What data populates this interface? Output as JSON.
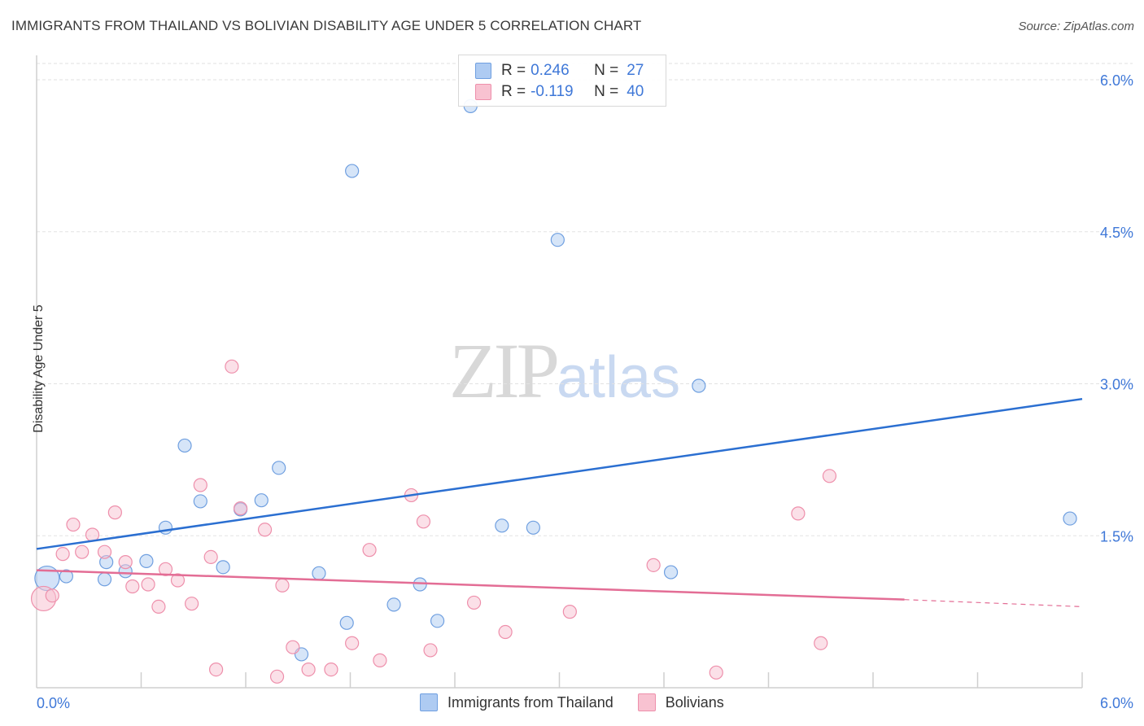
{
  "header": {
    "title": "IMMIGRANTS FROM THAILAND VS BOLIVIAN DISABILITY AGE UNDER 5 CORRELATION CHART",
    "source": "Source: ZipAtlas.com"
  },
  "watermark": {
    "zip": "ZIP",
    "atlas": "atlas"
  },
  "legend_top": {
    "rows": [
      {
        "r_label": "R =",
        "r_value": "0.246",
        "n_label": "N =",
        "n_value": "27"
      },
      {
        "r_label": "R =",
        "r_value": "-0.119",
        "n_label": "N =",
        "n_value": "40"
      }
    ]
  },
  "legend_bottom": {
    "items": [
      {
        "label": "Immigrants from Thailand"
      },
      {
        "label": "Bolivians"
      }
    ]
  },
  "colors": {
    "blue_fill": "#aecbf2",
    "blue_stroke": "#6f9fe0",
    "blue_line": "#2b6fd1",
    "pink_fill": "#f8c2d1",
    "pink_stroke": "#ee8fab",
    "pink_line": "#e36d95",
    "grid": "#e2e2e2",
    "axis_text": "#3f78d8"
  },
  "chart_data": {
    "type": "scatter",
    "title": "IMMIGRANTS FROM THAILAND VS BOLIVIAN DISABILITY AGE UNDER 5 CORRELATION CHART",
    "xlabel": "",
    "ylabel": "Disability Age Under 5",
    "xlim": [
      0,
      6
    ],
    "ylim": [
      0,
      6.3
    ],
    "y_ticks": [
      {
        "value": 1.5,
        "label": "1.5%"
      },
      {
        "value": 3.0,
        "label": "3.0%"
      },
      {
        "value": 4.5,
        "label": "4.5%"
      },
      {
        "value": 6.0,
        "label": "6.0%"
      }
    ],
    "x_ticks": [
      {
        "value": 0,
        "label": "0.0%"
      },
      {
        "value": 6,
        "label": "6.0%"
      }
    ],
    "x_minor_ticks": [
      0.6,
      1.2,
      1.8,
      2.4,
      3.0,
      3.6,
      4.2,
      4.8,
      5.4,
      6.0
    ],
    "grid": true,
    "series": [
      {
        "name": "Immigrants from Thailand",
        "color": "blue",
        "points": [
          {
            "x": 0.06,
            "y": 1.08,
            "big": true
          },
          {
            "x": 0.17,
            "y": 1.1
          },
          {
            "x": 0.4,
            "y": 1.24
          },
          {
            "x": 0.39,
            "y": 1.07
          },
          {
            "x": 0.51,
            "y": 1.15
          },
          {
            "x": 0.63,
            "y": 1.25
          },
          {
            "x": 0.74,
            "y": 1.58
          },
          {
            "x": 0.85,
            "y": 2.39
          },
          {
            "x": 0.94,
            "y": 1.84
          },
          {
            "x": 1.07,
            "y": 1.19
          },
          {
            "x": 1.17,
            "y": 1.76
          },
          {
            "x": 1.29,
            "y": 1.85
          },
          {
            "x": 1.39,
            "y": 2.17
          },
          {
            "x": 1.52,
            "y": 0.33
          },
          {
            "x": 1.62,
            "y": 1.13
          },
          {
            "x": 1.78,
            "y": 0.64
          },
          {
            "x": 1.81,
            "y": 5.1
          },
          {
            "x": 2.05,
            "y": 0.82
          },
          {
            "x": 2.2,
            "y": 1.02
          },
          {
            "x": 2.3,
            "y": 0.66
          },
          {
            "x": 2.49,
            "y": 5.74
          },
          {
            "x": 2.67,
            "y": 1.6
          },
          {
            "x": 2.85,
            "y": 1.58
          },
          {
            "x": 2.99,
            "y": 4.42
          },
          {
            "x": 3.64,
            "y": 1.14
          },
          {
            "x": 3.8,
            "y": 2.98
          },
          {
            "x": 5.93,
            "y": 1.67
          }
        ],
        "trend": {
          "x": [
            0,
            6
          ],
          "y": [
            1.37,
            2.85
          ]
        }
      },
      {
        "name": "Bolivians",
        "color": "pink",
        "points": [
          {
            "x": 0.04,
            "y": 0.88,
            "big": true
          },
          {
            "x": 0.09,
            "y": 0.91
          },
          {
            "x": 0.15,
            "y": 1.32
          },
          {
            "x": 0.21,
            "y": 1.61
          },
          {
            "x": 0.26,
            "y": 1.34
          },
          {
            "x": 0.32,
            "y": 1.51
          },
          {
            "x": 0.39,
            "y": 1.34
          },
          {
            "x": 0.45,
            "y": 1.73
          },
          {
            "x": 0.51,
            "y": 1.24
          },
          {
            "x": 0.55,
            "y": 1.0
          },
          {
            "x": 0.64,
            "y": 1.02
          },
          {
            "x": 0.7,
            "y": 0.8
          },
          {
            "x": 0.74,
            "y": 1.17
          },
          {
            "x": 0.81,
            "y": 1.06
          },
          {
            "x": 0.89,
            "y": 0.83
          },
          {
            "x": 0.94,
            "y": 2.0
          },
          {
            "x": 1.0,
            "y": 1.29
          },
          {
            "x": 1.03,
            "y": 0.18
          },
          {
            "x": 1.12,
            "y": 3.17
          },
          {
            "x": 1.17,
            "y": 1.77
          },
          {
            "x": 1.31,
            "y": 1.56
          },
          {
            "x": 1.38,
            "y": 0.11
          },
          {
            "x": 1.41,
            "y": 1.01
          },
          {
            "x": 1.47,
            "y": 0.4
          },
          {
            "x": 1.56,
            "y": 0.18
          },
          {
            "x": 1.69,
            "y": 0.18
          },
          {
            "x": 1.81,
            "y": 0.44
          },
          {
            "x": 1.91,
            "y": 1.36
          },
          {
            "x": 1.97,
            "y": 0.27
          },
          {
            "x": 2.15,
            "y": 1.9
          },
          {
            "x": 2.22,
            "y": 1.64
          },
          {
            "x": 2.26,
            "y": 0.37
          },
          {
            "x": 2.51,
            "y": 0.84
          },
          {
            "x": 2.69,
            "y": 0.55
          },
          {
            "x": 3.06,
            "y": 0.75
          },
          {
            "x": 3.54,
            "y": 1.21
          },
          {
            "x": 3.9,
            "y": 0.15
          },
          {
            "x": 4.37,
            "y": 1.72
          },
          {
            "x": 4.55,
            "y": 2.09
          },
          {
            "x": 4.5,
            "y": 0.44
          }
        ],
        "trend": {
          "x": [
            0,
            4.98
          ],
          "y": [
            1.16,
            0.87
          ]
        },
        "trend_dashed": {
          "x": [
            4.98,
            6
          ],
          "y": [
            0.87,
            0.8
          ]
        }
      }
    ]
  }
}
